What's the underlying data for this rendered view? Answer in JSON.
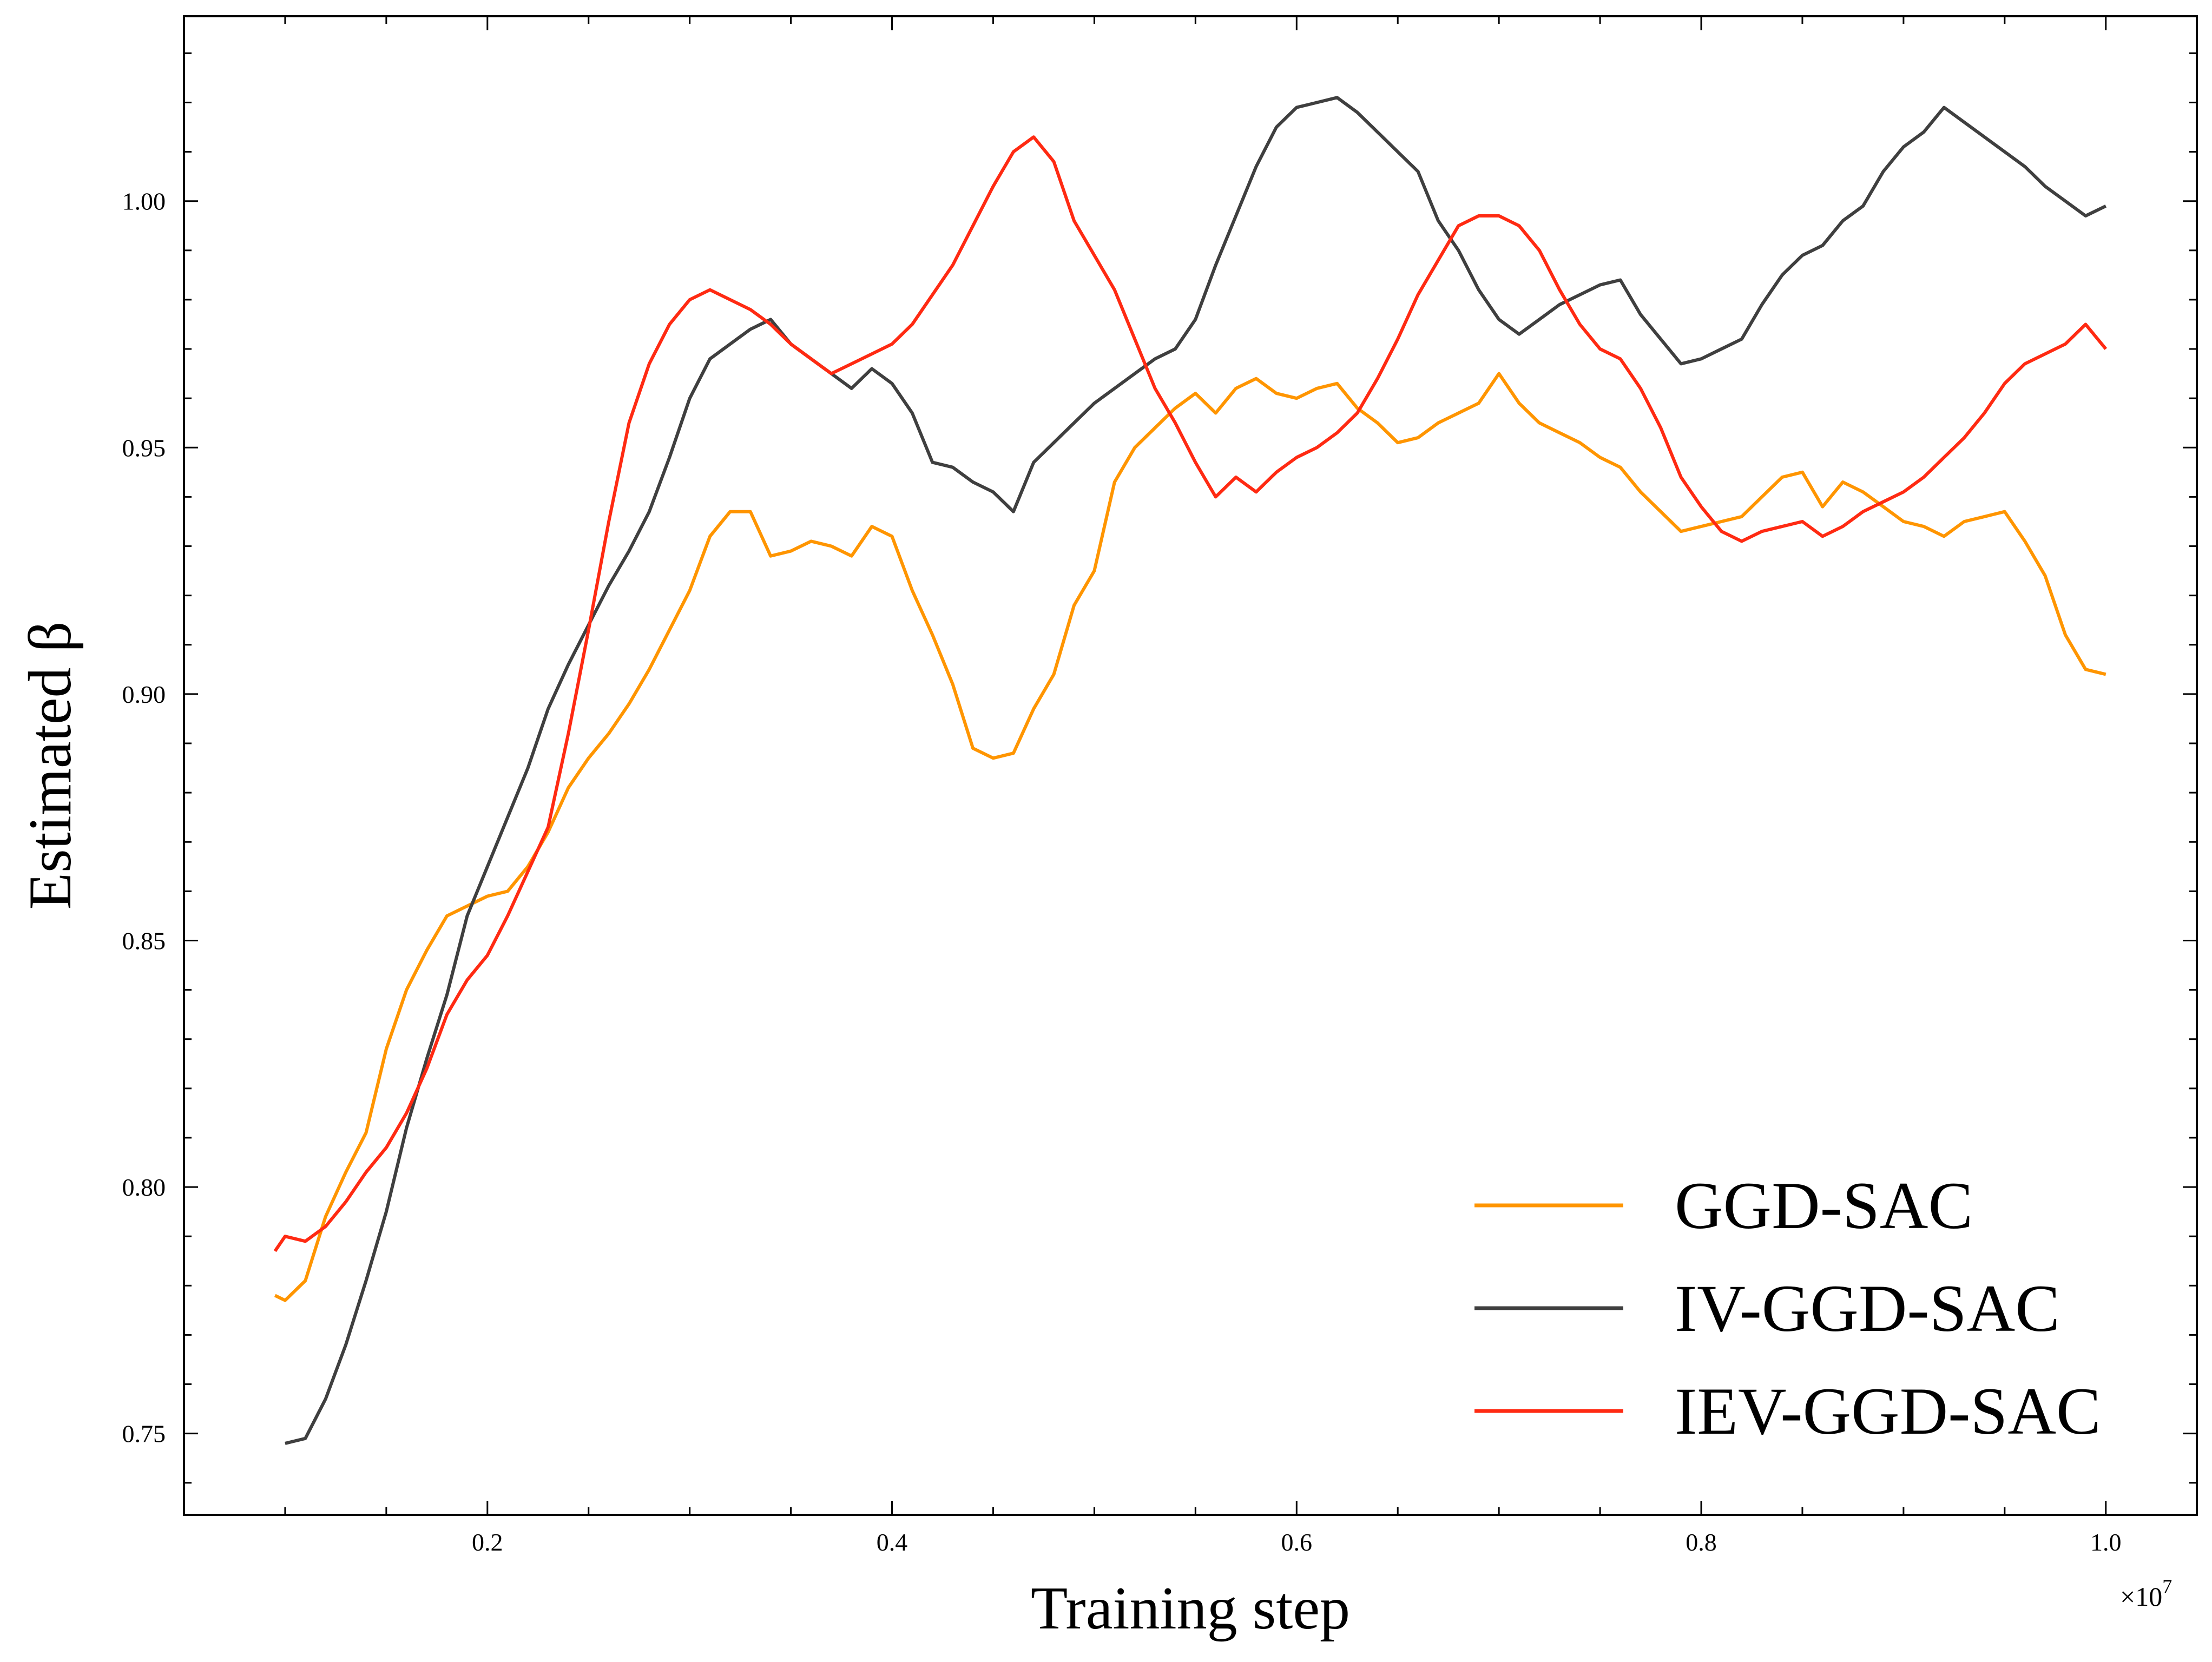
{
  "chart_data": {
    "type": "line",
    "title": "",
    "xlabel": "Training step",
    "ylabel": "Estimated β",
    "x_multiplier_label": "×10",
    "x_multiplier_exponent": "7",
    "xlim": [
      0.05,
      1.045
    ],
    "ylim": [
      0.7335,
      1.0375
    ],
    "x_ticks": [
      0.2,
      0.4,
      0.6,
      0.8,
      1.0
    ],
    "x_tick_labels": [
      "0.2",
      "0.4",
      "0.6",
      "0.8",
      "1.0"
    ],
    "y_ticks": [
      0.75,
      0.8,
      0.85,
      0.9,
      0.95,
      1.0
    ],
    "y_tick_labels": [
      "0.75",
      "0.80",
      "0.85",
      "0.90",
      "0.95",
      "1.00"
    ],
    "grid": false,
    "legend_position": "bottom-right",
    "series": [
      {
        "name": "GGD-SAC",
        "color": "#ff9500",
        "points": [
          [
            0.095,
            0.778
          ],
          [
            0.1,
            0.777
          ],
          [
            0.11,
            0.781
          ],
          [
            0.12,
            0.794
          ],
          [
            0.13,
            0.803
          ],
          [
            0.14,
            0.811
          ],
          [
            0.15,
            0.828
          ],
          [
            0.16,
            0.84
          ],
          [
            0.17,
            0.848
          ],
          [
            0.18,
            0.855
          ],
          [
            0.19,
            0.857
          ],
          [
            0.2,
            0.859
          ],
          [
            0.21,
            0.86
          ],
          [
            0.22,
            0.865
          ],
          [
            0.23,
            0.872
          ],
          [
            0.24,
            0.881
          ],
          [
            0.25,
            0.887
          ],
          [
            0.26,
            0.892
          ],
          [
            0.27,
            0.898
          ],
          [
            0.28,
            0.905
          ],
          [
            0.29,
            0.913
          ],
          [
            0.3,
            0.921
          ],
          [
            0.31,
            0.932
          ],
          [
            0.32,
            0.937
          ],
          [
            0.33,
            0.937
          ],
          [
            0.34,
            0.928
          ],
          [
            0.35,
            0.929
          ],
          [
            0.36,
            0.931
          ],
          [
            0.37,
            0.93
          ],
          [
            0.38,
            0.928
          ],
          [
            0.39,
            0.934
          ],
          [
            0.4,
            0.932
          ],
          [
            0.41,
            0.921
          ],
          [
            0.42,
            0.912
          ],
          [
            0.43,
            0.902
          ],
          [
            0.44,
            0.889
          ],
          [
            0.45,
            0.887
          ],
          [
            0.46,
            0.888
          ],
          [
            0.47,
            0.897
          ],
          [
            0.48,
            0.904
          ],
          [
            0.49,
            0.918
          ],
          [
            0.5,
            0.925
          ],
          [
            0.51,
            0.943
          ],
          [
            0.52,
            0.95
          ],
          [
            0.53,
            0.954
          ],
          [
            0.54,
            0.958
          ],
          [
            0.55,
            0.961
          ],
          [
            0.56,
            0.957
          ],
          [
            0.57,
            0.962
          ],
          [
            0.58,
            0.964
          ],
          [
            0.59,
            0.961
          ],
          [
            0.6,
            0.96
          ],
          [
            0.61,
            0.962
          ],
          [
            0.62,
            0.963
          ],
          [
            0.63,
            0.958
          ],
          [
            0.64,
            0.955
          ],
          [
            0.65,
            0.951
          ],
          [
            0.66,
            0.952
          ],
          [
            0.67,
            0.955
          ],
          [
            0.68,
            0.957
          ],
          [
            0.69,
            0.959
          ],
          [
            0.7,
            0.965
          ],
          [
            0.71,
            0.959
          ],
          [
            0.72,
            0.955
          ],
          [
            0.73,
            0.953
          ],
          [
            0.74,
            0.951
          ],
          [
            0.75,
            0.948
          ],
          [
            0.76,
            0.946
          ],
          [
            0.77,
            0.941
          ],
          [
            0.78,
            0.937
          ],
          [
            0.79,
            0.933
          ],
          [
            0.8,
            0.934
          ],
          [
            0.81,
            0.935
          ],
          [
            0.82,
            0.936
          ],
          [
            0.83,
            0.94
          ],
          [
            0.84,
            0.944
          ],
          [
            0.85,
            0.945
          ],
          [
            0.86,
            0.938
          ],
          [
            0.87,
            0.943
          ],
          [
            0.88,
            0.941
          ],
          [
            0.89,
            0.938
          ],
          [
            0.9,
            0.935
          ],
          [
            0.91,
            0.934
          ],
          [
            0.92,
            0.932
          ],
          [
            0.93,
            0.935
          ],
          [
            0.94,
            0.936
          ],
          [
            0.95,
            0.937
          ],
          [
            0.96,
            0.931
          ],
          [
            0.97,
            0.924
          ],
          [
            0.98,
            0.912
          ],
          [
            0.99,
            0.905
          ],
          [
            1.0,
            0.904
          ]
        ]
      },
      {
        "name": "IV-GGD-SAC",
        "color": "#3f3f3f",
        "points": [
          [
            0.1,
            0.748
          ],
          [
            0.11,
            0.749
          ],
          [
            0.12,
            0.757
          ],
          [
            0.13,
            0.768
          ],
          [
            0.14,
            0.781
          ],
          [
            0.15,
            0.795
          ],
          [
            0.16,
            0.812
          ],
          [
            0.17,
            0.826
          ],
          [
            0.18,
            0.839
          ],
          [
            0.19,
            0.855
          ],
          [
            0.2,
            0.865
          ],
          [
            0.21,
            0.875
          ],
          [
            0.22,
            0.885
          ],
          [
            0.23,
            0.897
          ],
          [
            0.24,
            0.906
          ],
          [
            0.25,
            0.914
          ],
          [
            0.26,
            0.922
          ],
          [
            0.27,
            0.929
          ],
          [
            0.28,
            0.937
          ],
          [
            0.29,
            0.948
          ],
          [
            0.3,
            0.96
          ],
          [
            0.31,
            0.968
          ],
          [
            0.32,
            0.971
          ],
          [
            0.33,
            0.974
          ],
          [
            0.34,
            0.976
          ],
          [
            0.35,
            0.971
          ],
          [
            0.36,
            0.968
          ],
          [
            0.37,
            0.965
          ],
          [
            0.38,
            0.962
          ],
          [
            0.39,
            0.966
          ],
          [
            0.4,
            0.963
          ],
          [
            0.41,
            0.957
          ],
          [
            0.42,
            0.947
          ],
          [
            0.43,
            0.946
          ],
          [
            0.44,
            0.943
          ],
          [
            0.45,
            0.941
          ],
          [
            0.46,
            0.937
          ],
          [
            0.47,
            0.947
          ],
          [
            0.48,
            0.951
          ],
          [
            0.49,
            0.955
          ],
          [
            0.5,
            0.959
          ],
          [
            0.51,
            0.962
          ],
          [
            0.52,
            0.965
          ],
          [
            0.53,
            0.968
          ],
          [
            0.54,
            0.97
          ],
          [
            0.55,
            0.976
          ],
          [
            0.56,
            0.987
          ],
          [
            0.57,
            0.997
          ],
          [
            0.58,
            1.007
          ],
          [
            0.59,
            1.015
          ],
          [
            0.6,
            1.019
          ],
          [
            0.61,
            1.02
          ],
          [
            0.62,
            1.021
          ],
          [
            0.63,
            1.018
          ],
          [
            0.64,
            1.014
          ],
          [
            0.65,
            1.01
          ],
          [
            0.66,
            1.006
          ],
          [
            0.67,
            0.996
          ],
          [
            0.68,
            0.99
          ],
          [
            0.69,
            0.982
          ],
          [
            0.7,
            0.976
          ],
          [
            0.71,
            0.973
          ],
          [
            0.72,
            0.976
          ],
          [
            0.73,
            0.979
          ],
          [
            0.74,
            0.981
          ],
          [
            0.75,
            0.983
          ],
          [
            0.76,
            0.984
          ],
          [
            0.77,
            0.977
          ],
          [
            0.78,
            0.972
          ],
          [
            0.79,
            0.967
          ],
          [
            0.8,
            0.968
          ],
          [
            0.81,
            0.97
          ],
          [
            0.82,
            0.972
          ],
          [
            0.83,
            0.979
          ],
          [
            0.84,
            0.985
          ],
          [
            0.85,
            0.989
          ],
          [
            0.86,
            0.991
          ],
          [
            0.87,
            0.996
          ],
          [
            0.88,
            0.999
          ],
          [
            0.89,
            1.006
          ],
          [
            0.9,
            1.011
          ],
          [
            0.91,
            1.014
          ],
          [
            0.92,
            1.019
          ],
          [
            0.93,
            1.016
          ],
          [
            0.94,
            1.013
          ],
          [
            0.95,
            1.01
          ],
          [
            0.96,
            1.007
          ],
          [
            0.97,
            1.003
          ],
          [
            0.98,
            1.0
          ],
          [
            0.99,
            0.997
          ],
          [
            1.0,
            0.999
          ]
        ]
      },
      {
        "name": "IEV-GGD-SAC",
        "color": "#ff2a12",
        "points": [
          [
            0.095,
            0.787
          ],
          [
            0.1,
            0.79
          ],
          [
            0.11,
            0.789
          ],
          [
            0.12,
            0.792
          ],
          [
            0.13,
            0.797
          ],
          [
            0.14,
            0.803
          ],
          [
            0.15,
            0.808
          ],
          [
            0.16,
            0.815
          ],
          [
            0.17,
            0.824
          ],
          [
            0.18,
            0.835
          ],
          [
            0.19,
            0.842
          ],
          [
            0.2,
            0.847
          ],
          [
            0.21,
            0.855
          ],
          [
            0.22,
            0.864
          ],
          [
            0.23,
            0.873
          ],
          [
            0.24,
            0.892
          ],
          [
            0.25,
            0.913
          ],
          [
            0.26,
            0.935
          ],
          [
            0.27,
            0.955
          ],
          [
            0.28,
            0.967
          ],
          [
            0.29,
            0.975
          ],
          [
            0.3,
            0.98
          ],
          [
            0.31,
            0.982
          ],
          [
            0.32,
            0.98
          ],
          [
            0.33,
            0.978
          ],
          [
            0.34,
            0.975
          ],
          [
            0.35,
            0.971
          ],
          [
            0.36,
            0.968
          ],
          [
            0.37,
            0.965
          ],
          [
            0.38,
            0.967
          ],
          [
            0.39,
            0.969
          ],
          [
            0.4,
            0.971
          ],
          [
            0.41,
            0.975
          ],
          [
            0.42,
            0.981
          ],
          [
            0.43,
            0.987
          ],
          [
            0.44,
            0.995
          ],
          [
            0.45,
            1.003
          ],
          [
            0.46,
            1.01
          ],
          [
            0.47,
            1.013
          ],
          [
            0.48,
            1.008
          ],
          [
            0.49,
            0.996
          ],
          [
            0.5,
            0.989
          ],
          [
            0.51,
            0.982
          ],
          [
            0.52,
            0.972
          ],
          [
            0.53,
            0.962
          ],
          [
            0.54,
            0.955
          ],
          [
            0.55,
            0.947
          ],
          [
            0.56,
            0.94
          ],
          [
            0.57,
            0.944
          ],
          [
            0.58,
            0.941
          ],
          [
            0.59,
            0.945
          ],
          [
            0.6,
            0.948
          ],
          [
            0.61,
            0.95
          ],
          [
            0.62,
            0.953
          ],
          [
            0.63,
            0.957
          ],
          [
            0.64,
            0.964
          ],
          [
            0.65,
            0.972
          ],
          [
            0.66,
            0.981
          ],
          [
            0.67,
            0.988
          ],
          [
            0.68,
            0.995
          ],
          [
            0.69,
            0.997
          ],
          [
            0.7,
            0.997
          ],
          [
            0.71,
            0.995
          ],
          [
            0.72,
            0.99
          ],
          [
            0.73,
            0.982
          ],
          [
            0.74,
            0.975
          ],
          [
            0.75,
            0.97
          ],
          [
            0.76,
            0.968
          ],
          [
            0.77,
            0.962
          ],
          [
            0.78,
            0.954
          ],
          [
            0.79,
            0.944
          ],
          [
            0.8,
            0.938
          ],
          [
            0.81,
            0.933
          ],
          [
            0.82,
            0.931
          ],
          [
            0.83,
            0.933
          ],
          [
            0.84,
            0.934
          ],
          [
            0.85,
            0.935
          ],
          [
            0.86,
            0.932
          ],
          [
            0.87,
            0.934
          ],
          [
            0.88,
            0.937
          ],
          [
            0.89,
            0.939
          ],
          [
            0.9,
            0.941
          ],
          [
            0.91,
            0.944
          ],
          [
            0.92,
            0.948
          ],
          [
            0.93,
            0.952
          ],
          [
            0.94,
            0.957
          ],
          [
            0.95,
            0.963
          ],
          [
            0.96,
            0.967
          ],
          [
            0.97,
            0.969
          ],
          [
            0.98,
            0.971
          ],
          [
            0.99,
            0.975
          ],
          [
            1.0,
            0.97
          ]
        ]
      }
    ]
  }
}
